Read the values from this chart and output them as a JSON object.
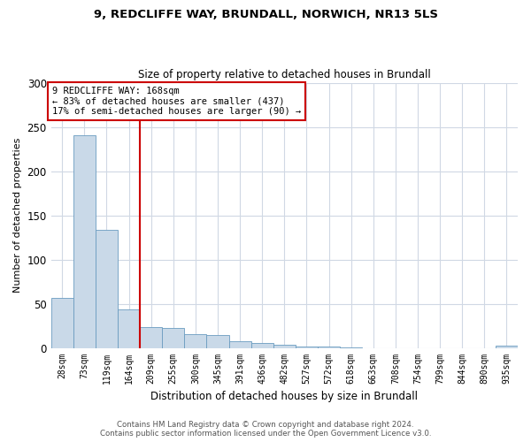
{
  "title_line1": "9, REDCLIFFE WAY, BRUNDALL, NORWICH, NR13 5LS",
  "title_line2": "Size of property relative to detached houses in Brundall",
  "xlabel": "Distribution of detached houses by size in Brundall",
  "ylabel": "Number of detached properties",
  "bar_labels": [
    "28sqm",
    "73sqm",
    "119sqm",
    "164sqm",
    "209sqm",
    "255sqm",
    "300sqm",
    "345sqm",
    "391sqm",
    "436sqm",
    "482sqm",
    "527sqm",
    "572sqm",
    "618sqm",
    "663sqm",
    "708sqm",
    "754sqm",
    "799sqm",
    "844sqm",
    "890sqm",
    "935sqm"
  ],
  "bar_values": [
    57,
    241,
    134,
    44,
    24,
    23,
    16,
    15,
    8,
    6,
    4,
    2,
    2,
    1,
    0,
    0,
    0,
    0,
    0,
    0,
    3
  ],
  "bar_color": "#c9d9e8",
  "bar_edgecolor": "#6a9cc0",
  "redline_x": 3,
  "annotation_text": "9 REDCLIFFE WAY: 168sqm\n← 83% of detached houses are smaller (437)\n17% of semi-detached houses are larger (90) →",
  "annotation_box_color": "#ffffff",
  "annotation_box_edgecolor": "#cc0000",
  "ylim": [
    0,
    300
  ],
  "yticks": [
    0,
    50,
    100,
    150,
    200,
    250,
    300
  ],
  "footer_line1": "Contains HM Land Registry data © Crown copyright and database right 2024.",
  "footer_line2": "Contains public sector information licensed under the Open Government Licence v3.0.",
  "background_color": "#ffffff",
  "grid_color": "#d0d8e4"
}
